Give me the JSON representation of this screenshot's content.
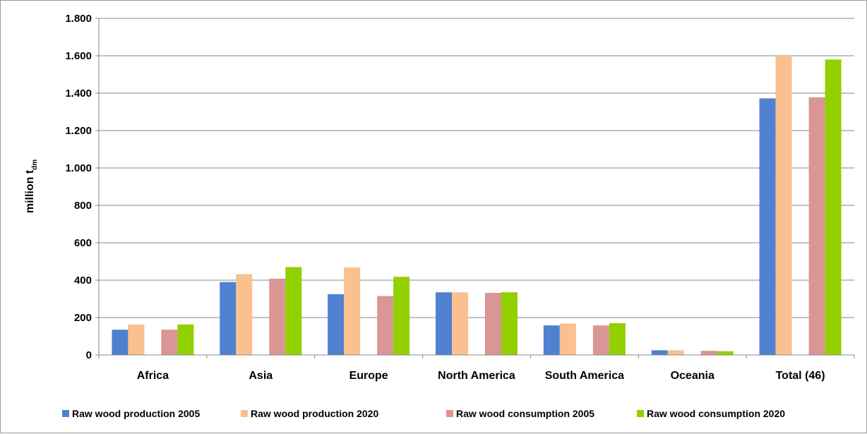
{
  "chart_data": {
    "type": "bar",
    "title": "",
    "xlabel": "",
    "ylabel": "million t",
    "ylabel_subscript": "dm",
    "ylim": [
      0,
      1800
    ],
    "yticks": [
      0,
      200,
      400,
      600,
      800,
      1000,
      1200,
      1400,
      1600,
      1800
    ],
    "ytick_labels": [
      "0",
      "200",
      "400",
      "600",
      "800",
      "1.000",
      "1.200",
      "1.400",
      "1.600",
      "1.800"
    ],
    "grid": true,
    "legend_position": "bottom",
    "categories": [
      "Africa",
      "Asia",
      "Europe",
      "North America",
      "South America",
      "Oceania",
      "Total (46)"
    ],
    "series": [
      {
        "name": "Raw wood production 2005",
        "color": "#4f81d0",
        "values": [
          135,
          390,
          325,
          335,
          158,
          25,
          1372
        ]
      },
      {
        "name": "Raw wood production 2020",
        "color": "#fac08f",
        "values": [
          163,
          432,
          468,
          335,
          168,
          25,
          1600
        ]
      },
      {
        "name": "Raw wood consumption 2005",
        "color": "#d99694",
        "values": [
          135,
          408,
          315,
          332,
          158,
          22,
          1378
        ]
      },
      {
        "name": "Raw wood consumption 2020",
        "color": "#92d000",
        "values": [
          163,
          470,
          418,
          335,
          170,
          20,
          1580
        ]
      }
    ]
  }
}
